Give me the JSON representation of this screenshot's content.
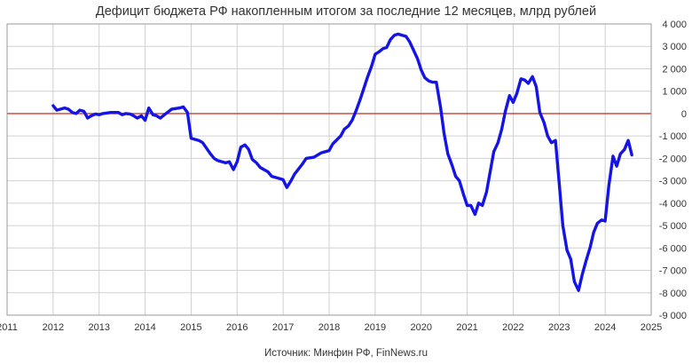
{
  "chart_data": {
    "type": "line",
    "title": "Дефицит бюджета РФ накопленным итогом за последние 12 месяцев, млрд рублей",
    "source": "Источник: Минфин РФ, FinNews.ru",
    "xlim": [
      2011,
      2025
    ],
    "ylim": [
      -9000,
      4000
    ],
    "x_ticks": [
      "2011",
      "2012",
      "2013",
      "2014",
      "2015",
      "2016",
      "2017",
      "2018",
      "2019",
      "2020",
      "2021",
      "2022",
      "2023",
      "2024",
      "2025"
    ],
    "y_ticks": [
      "4 000",
      "3 000",
      "2 000",
      "1 000",
      "0",
      "-1 000",
      "-2 000",
      "-3 000",
      "-4 000",
      "-5 000",
      "-6 000",
      "-7 000",
      "-8 000",
      "-9 000"
    ],
    "grid": true,
    "colors": {
      "series": "#1414e6",
      "zero_line": "#d03a2a",
      "grid": "#d0d0d0"
    },
    "series": [
      {
        "name": "",
        "points": [
          [
            2012.0,
            350
          ],
          [
            2012.08,
            150
          ],
          [
            2012.25,
            250
          ],
          [
            2012.33,
            200
          ],
          [
            2012.42,
            50
          ],
          [
            2012.5,
            0
          ],
          [
            2012.58,
            150
          ],
          [
            2012.67,
            100
          ],
          [
            2012.75,
            -200
          ],
          [
            2012.83,
            -100
          ],
          [
            2012.92,
            -20
          ],
          [
            2013.0,
            -50
          ],
          [
            2013.08,
            0
          ],
          [
            2013.25,
            50
          ],
          [
            2013.42,
            50
          ],
          [
            2013.5,
            -50
          ],
          [
            2013.58,
            0
          ],
          [
            2013.67,
            -20
          ],
          [
            2013.75,
            -100
          ],
          [
            2013.83,
            -200
          ],
          [
            2013.92,
            -100
          ],
          [
            2014.0,
            -300
          ],
          [
            2014.08,
            250
          ],
          [
            2014.17,
            -50
          ],
          [
            2014.25,
            -100
          ],
          [
            2014.33,
            -200
          ],
          [
            2014.42,
            -50
          ],
          [
            2014.58,
            200
          ],
          [
            2014.75,
            250
          ],
          [
            2014.83,
            300
          ],
          [
            2014.92,
            50
          ],
          [
            2015.0,
            -1100
          ],
          [
            2015.17,
            -1200
          ],
          [
            2015.25,
            -1300
          ],
          [
            2015.42,
            -1800
          ],
          [
            2015.5,
            -2000
          ],
          [
            2015.58,
            -2100
          ],
          [
            2015.75,
            -2200
          ],
          [
            2015.83,
            -2150
          ],
          [
            2015.92,
            -2500
          ],
          [
            2016.0,
            -2150
          ],
          [
            2016.08,
            -1500
          ],
          [
            2016.17,
            -1400
          ],
          [
            2016.25,
            -1600
          ],
          [
            2016.33,
            -2050
          ],
          [
            2016.42,
            -2200
          ],
          [
            2016.5,
            -2400
          ],
          [
            2016.58,
            -2500
          ],
          [
            2016.67,
            -2600
          ],
          [
            2016.75,
            -2800
          ],
          [
            2016.83,
            -2850
          ],
          [
            2016.92,
            -2900
          ],
          [
            2017.0,
            -2950
          ],
          [
            2017.08,
            -3300
          ],
          [
            2017.17,
            -3000
          ],
          [
            2017.25,
            -2700
          ],
          [
            2017.42,
            -2250
          ],
          [
            2017.5,
            -2000
          ],
          [
            2017.67,
            -1950
          ],
          [
            2017.75,
            -1850
          ],
          [
            2017.83,
            -1750
          ],
          [
            2017.92,
            -1700
          ],
          [
            2018.0,
            -1650
          ],
          [
            2018.08,
            -1350
          ],
          [
            2018.25,
            -1000
          ],
          [
            2018.33,
            -700
          ],
          [
            2018.42,
            -550
          ],
          [
            2018.5,
            -300
          ],
          [
            2018.58,
            100
          ],
          [
            2018.67,
            600
          ],
          [
            2018.75,
            1100
          ],
          [
            2018.83,
            1600
          ],
          [
            2018.92,
            2100
          ],
          [
            2019.0,
            2650
          ],
          [
            2019.08,
            2750
          ],
          [
            2019.17,
            2900
          ],
          [
            2019.25,
            2950
          ],
          [
            2019.33,
            3300
          ],
          [
            2019.42,
            3500
          ],
          [
            2019.5,
            3550
          ],
          [
            2019.58,
            3500
          ],
          [
            2019.67,
            3450
          ],
          [
            2019.75,
            3200
          ],
          [
            2019.83,
            2850
          ],
          [
            2019.92,
            2450
          ],
          [
            2020.0,
            1950
          ],
          [
            2020.08,
            1600
          ],
          [
            2020.17,
            1450
          ],
          [
            2020.25,
            1400
          ],
          [
            2020.33,
            1400
          ],
          [
            2020.42,
            300
          ],
          [
            2020.5,
            -900
          ],
          [
            2020.58,
            -1800
          ],
          [
            2020.67,
            -2300
          ],
          [
            2020.75,
            -2800
          ],
          [
            2020.83,
            -3000
          ],
          [
            2020.92,
            -3600
          ],
          [
            2021.0,
            -4100
          ],
          [
            2021.08,
            -4100
          ],
          [
            2021.17,
            -4500
          ],
          [
            2021.25,
            -4000
          ],
          [
            2021.33,
            -4100
          ],
          [
            2021.42,
            -3500
          ],
          [
            2021.5,
            -2600
          ],
          [
            2021.58,
            -1700
          ],
          [
            2021.67,
            -1300
          ],
          [
            2021.75,
            -700
          ],
          [
            2021.83,
            100
          ],
          [
            2021.92,
            800
          ],
          [
            2022.0,
            500
          ],
          [
            2022.08,
            900
          ],
          [
            2022.17,
            1550
          ],
          [
            2022.25,
            1500
          ],
          [
            2022.33,
            1350
          ],
          [
            2022.42,
            1650
          ],
          [
            2022.5,
            1200
          ],
          [
            2022.58,
            50
          ],
          [
            2022.67,
            -400
          ],
          [
            2022.75,
            -1000
          ],
          [
            2022.83,
            -1300
          ],
          [
            2022.92,
            -1200
          ],
          [
            2023.0,
            -3100
          ],
          [
            2023.08,
            -5000
          ],
          [
            2023.17,
            -6100
          ],
          [
            2023.25,
            -6500
          ],
          [
            2023.33,
            -7500
          ],
          [
            2023.42,
            -7900
          ],
          [
            2023.5,
            -7200
          ],
          [
            2023.58,
            -6600
          ],
          [
            2023.67,
            -6000
          ],
          [
            2023.75,
            -5300
          ],
          [
            2023.83,
            -4900
          ],
          [
            2023.92,
            -4750
          ],
          [
            2024.0,
            -4800
          ],
          [
            2024.08,
            -3200
          ],
          [
            2024.17,
            -1900
          ],
          [
            2024.25,
            -2350
          ],
          [
            2024.33,
            -1800
          ],
          [
            2024.42,
            -1600
          ],
          [
            2024.5,
            -1200
          ],
          [
            2024.58,
            -1850
          ]
        ]
      }
    ]
  }
}
